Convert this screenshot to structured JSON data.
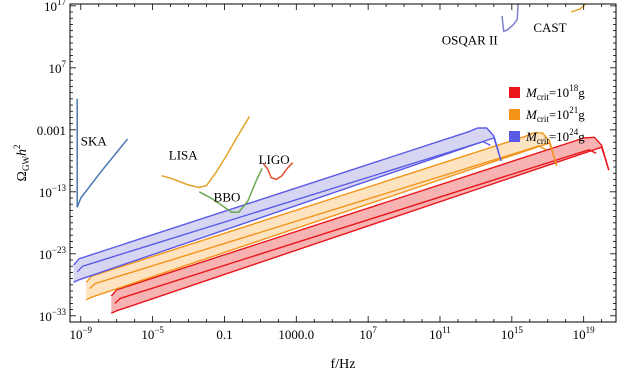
{
  "chart_data": {
    "type": "line",
    "xlabel": "f/Hz",
    "ylabel_main": "Ω",
    "ylabel_sub": "GW",
    "ylabel_tail": "h",
    "ylabel_sup": "2",
    "xscale": "log",
    "yscale": "log",
    "xlim_log10": [
      -9.6,
      20.8
    ],
    "ylim_log10": [
      -34,
      17.3
    ],
    "x_ticks": [
      {
        "log10": -9,
        "base": "10",
        "exp": "−9"
      },
      {
        "log10": -5,
        "base": "10",
        "exp": "−5"
      },
      {
        "log10": -1,
        "label": "0.1"
      },
      {
        "log10": 3,
        "label": "1000.0"
      },
      {
        "log10": 7,
        "base": "10",
        "exp": "7"
      },
      {
        "log10": 11,
        "base": "10",
        "exp": "11"
      },
      {
        "log10": 15,
        "base": "10",
        "exp": "15"
      },
      {
        "log10": 19,
        "base": "10",
        "exp": "19"
      }
    ],
    "y_ticks": [
      {
        "log10": -33,
        "base": "10",
        "exp": "−33"
      },
      {
        "log10": -23,
        "base": "10",
        "exp": "−23"
      },
      {
        "log10": -13,
        "base": "10",
        "exp": "−13"
      },
      {
        "log10": -3,
        "label": "0.001"
      },
      {
        "log10": 7,
        "base": "10",
        "exp": "7"
      },
      {
        "log10": 17,
        "base": "10",
        "exp": "17"
      }
    ],
    "legend": {
      "placement": "right",
      "entries": [
        {
          "prefix": "M",
          "sub": "crit",
          "eq": "=10",
          "sup": "18",
          "unit": "g",
          "color": "#e8161b"
        },
        {
          "prefix": "M",
          "sub": "crit",
          "eq": "=10",
          "sup": "21",
          "unit": "g",
          "color": "#f39419"
        },
        {
          "prefix": "M",
          "sub": "crit",
          "eq": "=10",
          "sup": "24",
          "unit": "g",
          "color": "#5a5ae6"
        }
      ]
    },
    "bands": [
      {
        "color": "#e8161b",
        "fill": "#f7b2b2",
        "upper": [
          [
            -7.3,
            -29.8
          ],
          [
            -7.0,
            -28.8
          ],
          [
            18.5,
            -4.8
          ],
          [
            19.0,
            -4.3
          ],
          [
            19.6,
            -4.2
          ],
          [
            20.0,
            -5.5
          ],
          [
            20.4,
            -9.5
          ]
        ],
        "lower": [
          [
            -7.3,
            -32.6
          ],
          [
            -7.0,
            -32.2
          ],
          [
            20.0,
            -5.8
          ],
          [
            20.4,
            -9.5
          ]
        ],
        "inner": [
          [
            -7.1,
            -31.0
          ],
          [
            -6.8,
            -30.2
          ],
          [
            19.3,
            -6.2
          ],
          [
            19.7,
            -6.8
          ]
        ]
      },
      {
        "color": "#f39419",
        "fill": "#fde3c0",
        "upper": [
          [
            -8.7,
            -27.6
          ],
          [
            -8.4,
            -26.6
          ],
          [
            15.7,
            -4.1
          ],
          [
            16.2,
            -3.5
          ],
          [
            16.7,
            -3.5
          ],
          [
            17.1,
            -4.8
          ],
          [
            17.5,
            -8.8
          ]
        ],
        "lower": [
          [
            -8.7,
            -30.4
          ],
          [
            -8.4,
            -30.0
          ],
          [
            17.1,
            -5.1
          ],
          [
            17.5,
            -8.8
          ]
        ],
        "inner": [
          [
            -8.5,
            -28.6
          ],
          [
            -8.2,
            -27.8
          ],
          [
            16.5,
            -5.6
          ],
          [
            16.9,
            -6.2
          ]
        ]
      },
      {
        "color": "#5a5ae6",
        "fill": "#d6d6f3",
        "upper": [
          [
            -9.4,
            -24.8
          ],
          [
            -9.1,
            -23.8
          ],
          [
            12.6,
            -3.3
          ],
          [
            13.1,
            -2.7
          ],
          [
            13.6,
            -2.7
          ],
          [
            14.0,
            -4.0
          ],
          [
            14.4,
            -8.0
          ]
        ],
        "lower": [
          [
            -9.4,
            -27.6
          ],
          [
            -9.1,
            -27.2
          ],
          [
            14.0,
            -4.3
          ],
          [
            14.4,
            -8.0
          ]
        ],
        "inner": [
          [
            -9.2,
            -25.9
          ],
          [
            -8.9,
            -25.0
          ],
          [
            13.4,
            -4.9
          ],
          [
            13.8,
            -5.5
          ]
        ]
      }
    ],
    "detectors": [
      {
        "name": "SKA",
        "color": "#4a78b5",
        "label_at": [
          -9.0,
          -5.5
        ],
        "points": [
          [
            -9.2,
            2.0
          ],
          [
            -9.2,
            -15.5
          ],
          [
            -9.0,
            -14.0
          ],
          [
            -7.8,
            -9.5
          ],
          [
            -6.4,
            -4.5
          ]
        ]
      },
      {
        "name": "LISA",
        "color": "#e3a32b",
        "label_at": [
          -4.1,
          -7.8
        ],
        "points": [
          [
            -4.5,
            -10.4
          ],
          [
            -4.0,
            -10.8
          ],
          [
            -3.0,
            -11.9
          ],
          [
            -2.4,
            -12.3
          ],
          [
            -2.0,
            -12.0
          ],
          [
            -1.5,
            -10.0
          ],
          [
            -0.9,
            -7.2
          ],
          [
            -0.3,
            -4.2
          ],
          [
            0.4,
            -0.8
          ]
        ]
      },
      {
        "name": "BBO",
        "color": "#6aa84f",
        "label_at": [
          -1.6,
          -14.6
        ],
        "points": [
          [
            -2.4,
            -13.0
          ],
          [
            -1.7,
            -14.1
          ],
          [
            -1.2,
            -15.1
          ],
          [
            -0.6,
            -16.3
          ],
          [
            -0.2,
            -16.3
          ],
          [
            0.3,
            -14.5
          ],
          [
            0.8,
            -11.0
          ],
          [
            1.1,
            -9.2
          ]
        ]
      },
      {
        "name": "LIGO",
        "color": "#e0522c",
        "label_at": [
          0.9,
          -8.5
        ],
        "points": [
          [
            1.15,
            -8.4
          ],
          [
            1.4,
            -9.3
          ],
          [
            1.6,
            -10.7
          ],
          [
            1.9,
            -11.0
          ],
          [
            2.2,
            -10.4
          ],
          [
            2.5,
            -9.2
          ],
          [
            2.8,
            -8.3
          ]
        ]
      },
      {
        "name": "OSQAR II",
        "color": "#7f7fcc",
        "label_at": [
          11.1,
          10.8
        ],
        "points": [
          [
            14.45,
            15.4
          ],
          [
            14.55,
            12.9
          ],
          [
            14.75,
            13.1
          ],
          [
            15.1,
            14.0
          ],
          [
            15.3,
            14.8
          ],
          [
            15.35,
            17.3
          ]
        ]
      },
      {
        "name": "CAST",
        "color": "#e3a32b",
        "label_at": [
          16.2,
          12.8
        ],
        "points": [
          [
            18.3,
            16.0
          ],
          [
            18.8,
            16.5
          ],
          [
            19.1,
            17.3
          ]
        ]
      }
    ]
  }
}
